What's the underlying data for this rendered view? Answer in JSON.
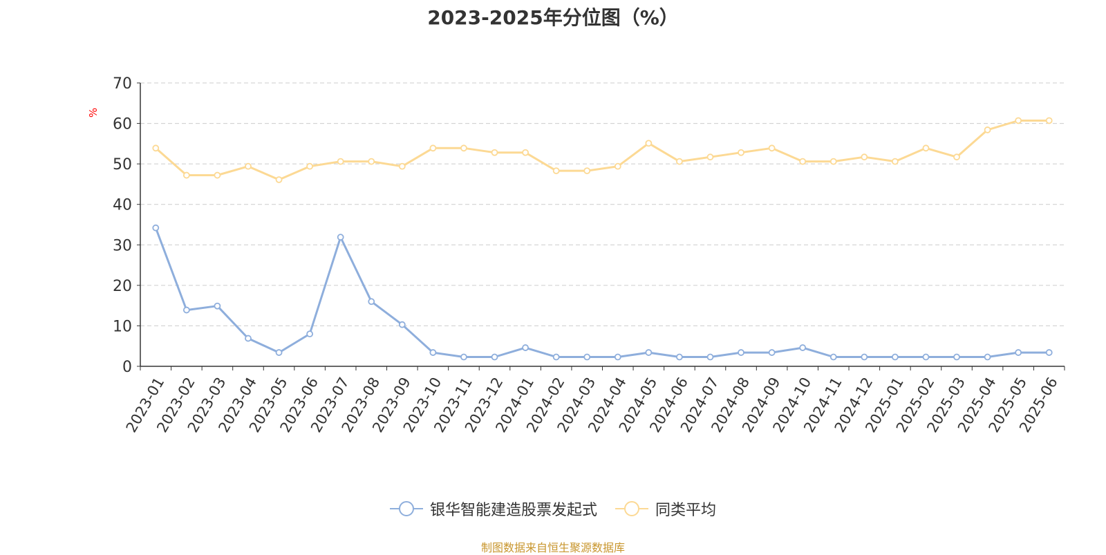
{
  "chart_data": {
    "type": "line",
    "title": "2023-2025年分位图（%）",
    "ylabel": "%",
    "ylim": [
      0,
      70
    ],
    "yticks": [
      0,
      10,
      20,
      30,
      40,
      50,
      60,
      70
    ],
    "grid": true,
    "legend_position": "bottom",
    "categories": [
      "2023-01",
      "2023-02",
      "2023-03",
      "2023-04",
      "2023-05",
      "2023-06",
      "2023-07",
      "2023-08",
      "2023-09",
      "2023-10",
      "2023-11",
      "2023-12",
      "2024-01",
      "2024-02",
      "2024-03",
      "2024-04",
      "2024-05",
      "2024-06",
      "2024-07",
      "2024-08",
      "2024-09",
      "2024-10",
      "2024-11",
      "2024-12",
      "2025-01",
      "2025-02",
      "2025-03",
      "2025-04",
      "2025-05",
      "2025-06"
    ],
    "series": [
      {
        "name": "银华智能建造股票发起式",
        "color": "#8eaedc",
        "values": [
          34.2,
          13.9,
          14.9,
          6.9,
          3.4,
          8.0,
          31.9,
          16.0,
          10.3,
          3.4,
          2.3,
          2.3,
          4.6,
          2.3,
          2.3,
          2.3,
          3.4,
          2.3,
          2.3,
          3.4,
          3.4,
          4.6,
          2.3,
          2.3,
          2.3,
          2.3,
          2.3,
          2.3,
          3.4,
          3.4
        ]
      },
      {
        "name": "同类平均",
        "color": "#fcd994",
        "values": [
          53.9,
          47.2,
          47.2,
          49.4,
          46.1,
          49.4,
          50.6,
          50.6,
          49.4,
          53.9,
          53.9,
          52.8,
          52.8,
          48.3,
          48.3,
          49.4,
          55.1,
          50.6,
          51.7,
          52.8,
          53.9,
          50.6,
          50.6,
          51.7,
          50.6,
          53.9,
          51.7,
          58.4,
          60.7,
          60.7
        ]
      }
    ]
  },
  "footer": {
    "source": "制图数据来自恒生聚源数据库"
  }
}
